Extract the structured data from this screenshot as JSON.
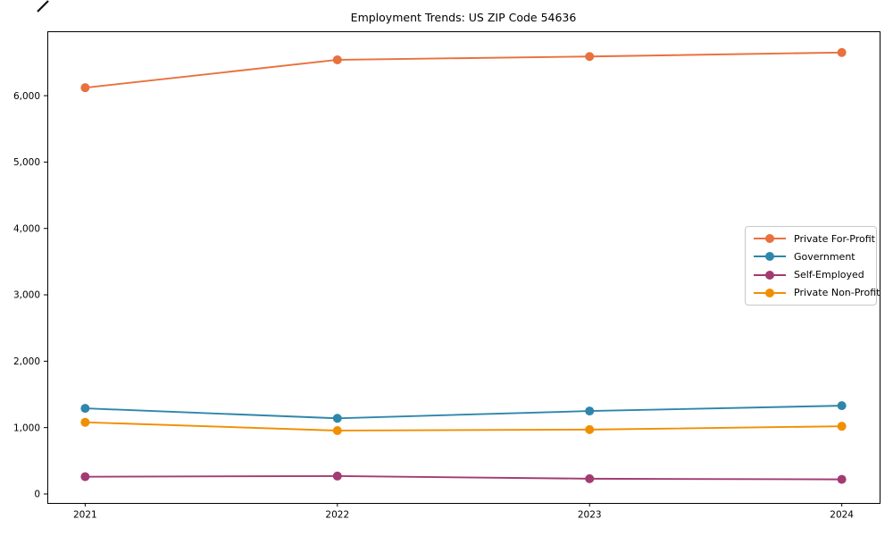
{
  "chart": {
    "title": "Employment Trends: US ZIP Code 54636"
  },
  "chart_data": {
    "type": "line",
    "title": "Employment Trends: US ZIP Code 54636",
    "xlabel": "",
    "ylabel": "",
    "x": [
      2021,
      2022,
      2023,
      2024
    ],
    "x_tick_labels": [
      "2021",
      "2022",
      "2023",
      "2024"
    ],
    "series": [
      {
        "name": "Private For-Profit",
        "color": "#E8713D",
        "marker": "circle",
        "values": [
          6120,
          6540,
          6590,
          6650
        ]
      },
      {
        "name": "Government",
        "color": "#2E86AB",
        "marker": "circle",
        "values": [
          1290,
          1140,
          1250,
          1330
        ]
      },
      {
        "name": "Self-Employed",
        "color": "#A23B72",
        "marker": "circle",
        "values": [
          260,
          270,
          230,
          220
        ]
      },
      {
        "name": "Private Non-Profit",
        "color": "#F18F01",
        "marker": "circle",
        "values": [
          1080,
          955,
          970,
          1020
        ]
      }
    ],
    "xlim": [
      2020.85,
      2024.15
    ],
    "ylim": [
      -135,
      6970
    ],
    "yticks": [
      0,
      1000,
      2000,
      3000,
      4000,
      5000,
      6000
    ],
    "ytick_labels": [
      "0",
      "1,000",
      "2,000",
      "3,000",
      "4,000",
      "5,000",
      "6,000"
    ],
    "grid": false,
    "legend_position": "center right",
    "axis_color": "#000000",
    "marker_radius": 5,
    "line_width": 1.9
  }
}
